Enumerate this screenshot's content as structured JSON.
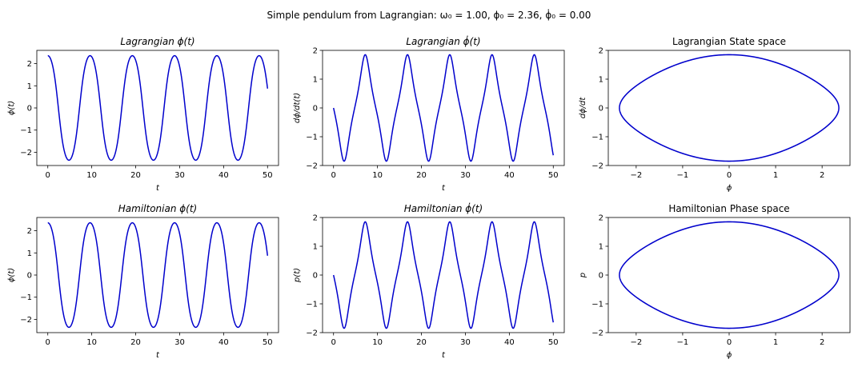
{
  "figure": {
    "suptitle": "Simple pendulum from Lagrangian:   ω₀ = 1.00,  ϕ₀ = 2.36,  ϕ̇₀ = 0.00"
  },
  "params": {
    "omega0": 1.0,
    "phi0": 2.36,
    "phidot0": 0.0,
    "t_max": 50
  },
  "colors": {
    "line": "#0000cc"
  },
  "chart_data": [
    {
      "id": "lag-phi",
      "type": "line",
      "title": "Lagrangian ϕ(t)",
      "title_italic": true,
      "xlabel": "t",
      "ylabel": "ϕ(t)",
      "xlim": [
        -2.5,
        52.5
      ],
      "ylim": [
        -2.6,
        2.6
      ],
      "xticks": [
        0,
        10,
        20,
        30,
        40,
        50
      ],
      "xtick_labels": [
        "0",
        "10",
        "20",
        "30",
        "40",
        "50"
      ],
      "yticks": [
        -2,
        -1,
        0,
        1,
        2
      ],
      "ytick_labels": [
        "−2",
        "−1",
        "0",
        "1",
        "2"
      ],
      "series": [
        {
          "x": "t",
          "y": "phi"
        }
      ]
    },
    {
      "id": "lag-phidot",
      "type": "line",
      "title": "Lagrangian ϕ̇(t)",
      "title_italic": true,
      "xlabel": "t",
      "ylabel": "dϕ/dt(t)",
      "xlim": [
        -2.5,
        52.5
      ],
      "ylim": [
        -2.0,
        2.0
      ],
      "xticks": [
        0,
        10,
        20,
        30,
        40,
        50
      ],
      "xtick_labels": [
        "0",
        "10",
        "20",
        "30",
        "40",
        "50"
      ],
      "yticks": [
        -2,
        -1,
        0,
        1,
        2
      ],
      "ytick_labels": [
        "−2",
        "−1",
        "0",
        "1",
        "2"
      ],
      "series": [
        {
          "x": "t",
          "y": "phidot"
        }
      ]
    },
    {
      "id": "lag-state",
      "type": "line",
      "title": "Lagrangian State space",
      "title_italic": false,
      "xlabel": "ϕ",
      "ylabel": "dϕ/dt",
      "xlim": [
        -2.6,
        2.6
      ],
      "ylim": [
        -2.0,
        2.0
      ],
      "xticks": [
        -2,
        -1,
        0,
        1,
        2
      ],
      "xtick_labels": [
        "−2",
        "−1",
        "0",
        "1",
        "2"
      ],
      "yticks": [
        -2,
        -1,
        0,
        1,
        2
      ],
      "ytick_labels": [
        "−2",
        "−1",
        "0",
        "1",
        "2"
      ],
      "series": [
        {
          "x": "phi",
          "y": "phidot"
        }
      ]
    },
    {
      "id": "ham-phi",
      "type": "line",
      "title": "Hamiltonian ϕ(t)",
      "title_italic": true,
      "xlabel": "t",
      "ylabel": "ϕ(t)",
      "xlim": [
        -2.5,
        52.5
      ],
      "ylim": [
        -2.6,
        2.6
      ],
      "xticks": [
        0,
        10,
        20,
        30,
        40,
        50
      ],
      "xtick_labels": [
        "0",
        "10",
        "20",
        "30",
        "40",
        "50"
      ],
      "yticks": [
        -2,
        -1,
        0,
        1,
        2
      ],
      "ytick_labels": [
        "−2",
        "−1",
        "0",
        "1",
        "2"
      ],
      "series": [
        {
          "x": "t",
          "y": "phi"
        }
      ]
    },
    {
      "id": "ham-phidot",
      "type": "line",
      "title": "Hamiltonian ϕ̇(t)",
      "title_italic": true,
      "xlabel": "t",
      "ylabel": "p(t)",
      "xlim": [
        -2.5,
        52.5
      ],
      "ylim": [
        -2.0,
        2.0
      ],
      "xticks": [
        0,
        10,
        20,
        30,
        40,
        50
      ],
      "xtick_labels": [
        "0",
        "10",
        "20",
        "30",
        "40",
        "50"
      ],
      "yticks": [
        -2,
        -1,
        0,
        1,
        2
      ],
      "ytick_labels": [
        "−2",
        "−1",
        "0",
        "1",
        "2"
      ],
      "series": [
        {
          "x": "t",
          "y": "phidot"
        }
      ]
    },
    {
      "id": "ham-phase",
      "type": "line",
      "title": "Hamiltonian Phase space",
      "title_italic": false,
      "xlabel": "ϕ",
      "ylabel": "p",
      "xlim": [
        -2.6,
        2.6
      ],
      "ylim": [
        -2.0,
        2.0
      ],
      "xticks": [
        -2,
        -1,
        0,
        1,
        2
      ],
      "xtick_labels": [
        "−2",
        "−1",
        "0",
        "1",
        "2"
      ],
      "yticks": [
        -2,
        -1,
        0,
        1,
        2
      ],
      "ytick_labels": [
        "−2",
        "−1",
        "0",
        "1",
        "2"
      ],
      "series": [
        {
          "x": "phi",
          "y": "phidot"
        }
      ]
    }
  ]
}
